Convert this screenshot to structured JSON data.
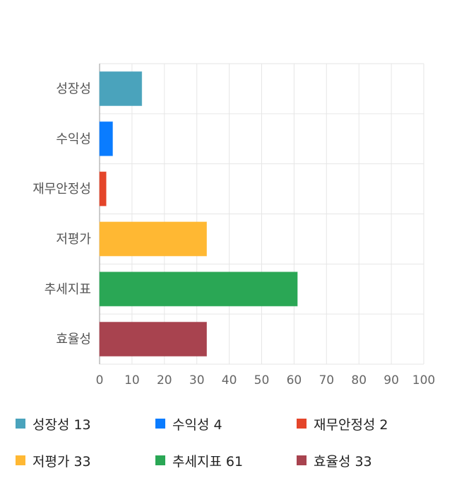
{
  "chart_data": {
    "type": "bar",
    "orientation": "horizontal",
    "categories": [
      "성장성",
      "수익성",
      "재무안정성",
      "저평가",
      "추세지표",
      "효율성"
    ],
    "values": [
      13,
      4,
      2,
      33,
      61,
      33
    ],
    "colors": [
      "#4aa3bc",
      "#0a7cff",
      "#e4452a",
      "#ffb833",
      "#2aa755",
      "#a8434f"
    ],
    "xlim": [
      0,
      100
    ],
    "x_ticks": [
      0,
      10,
      20,
      30,
      40,
      50,
      60,
      70,
      80,
      90,
      100
    ],
    "grid": true,
    "legend_placement": "bottom",
    "title": "",
    "xlabel": "",
    "ylabel": ""
  },
  "legend": [
    {
      "label": "성장성",
      "value": "13",
      "color": "#4aa3bc"
    },
    {
      "label": "수익성",
      "value": "4",
      "color": "#0a7cff"
    },
    {
      "label": "재무안정성",
      "value": "2",
      "color": "#e4452a"
    },
    {
      "label": "저평가",
      "value": "33",
      "color": "#ffb833"
    },
    {
      "label": "추세지표",
      "value": "61",
      "color": "#2aa755"
    },
    {
      "label": "효율성",
      "value": "33",
      "color": "#a8434f"
    }
  ]
}
